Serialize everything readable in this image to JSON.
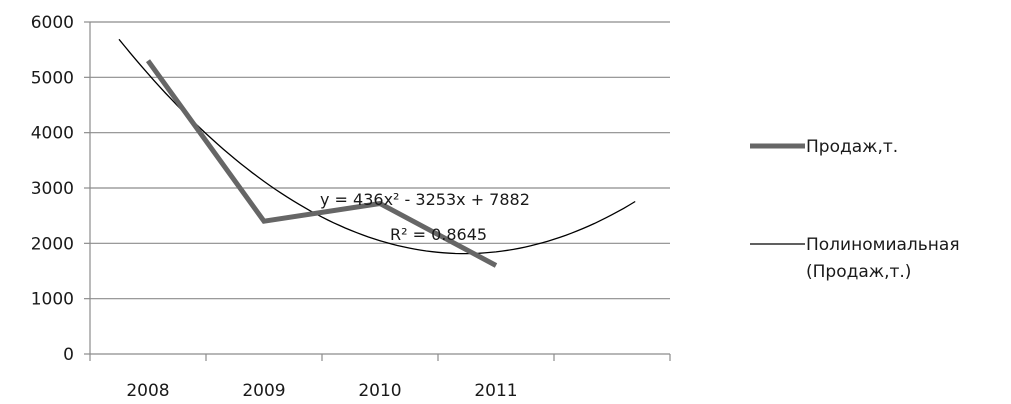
{
  "chart_data": {
    "type": "line",
    "categories": [
      "2008",
      "2009",
      "2010",
      "2011"
    ],
    "series": [
      {
        "name": "Продаж,т.",
        "values": [
          5300,
          2400,
          2720,
          1600
        ],
        "color": "#666666"
      }
    ],
    "trendline": {
      "name_line1": "Полиномиальная",
      "name_line2": "(Продаж,т.)",
      "equation": "y = 436x² - 3253x + 7882",
      "r_squared": "R² = 0.8645",
      "coefficients": [
        436,
        -3253,
        7882
      ],
      "x_range": [
        0.75,
        5.2
      ],
      "color": "#000000"
    },
    "ylim": [
      0,
      6000
    ],
    "yticks": [
      "0",
      "1000",
      "2000",
      "3000",
      "4000",
      "5000",
      "6000"
    ],
    "grid": true,
    "legend_position": "right"
  }
}
